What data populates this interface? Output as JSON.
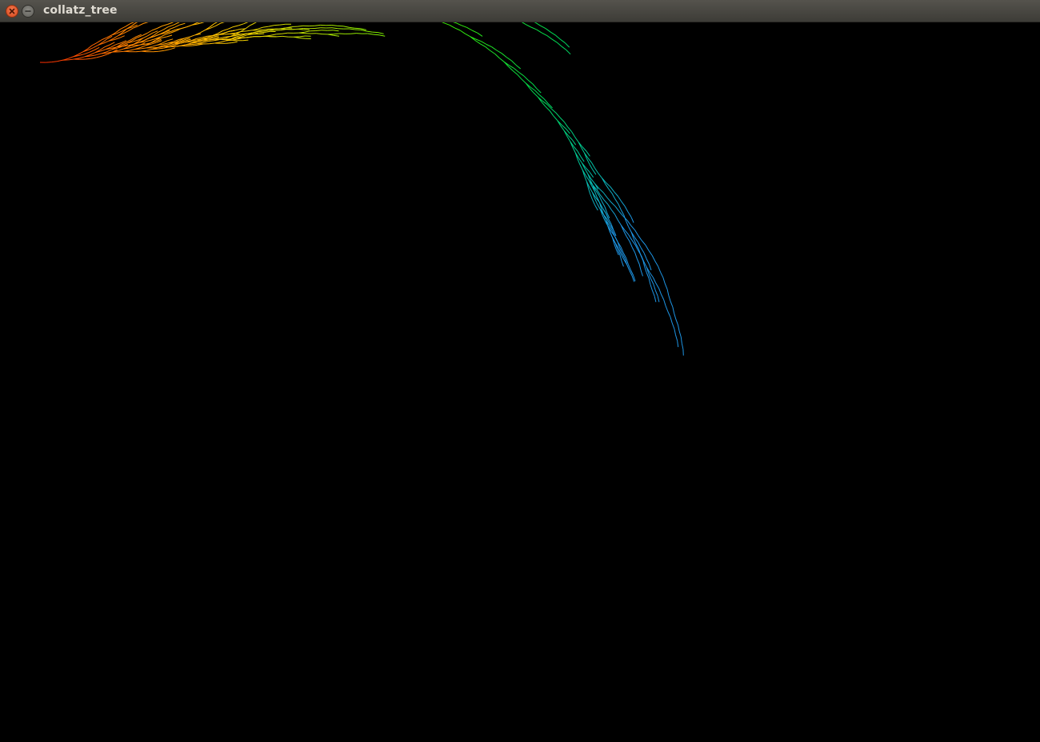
{
  "window": {
    "title": "collatz_tree"
  },
  "controls": {
    "close_icon": "close-icon",
    "minimize_icon": "minimize-icon"
  },
  "colors": {
    "titlebar": "#45443f",
    "background": "#000000",
    "close_button": "#e95420",
    "title_text": "#dfdbd2"
  },
  "visualization": {
    "kind": "collatz-tree",
    "stroke_palette": [
      "#ff2a00",
      "#ff8c00",
      "#ffd400",
      "#b8f000",
      "#44ee00",
      "#00e060",
      "#00c8a0",
      "#1fa0e0"
    ]
  }
}
